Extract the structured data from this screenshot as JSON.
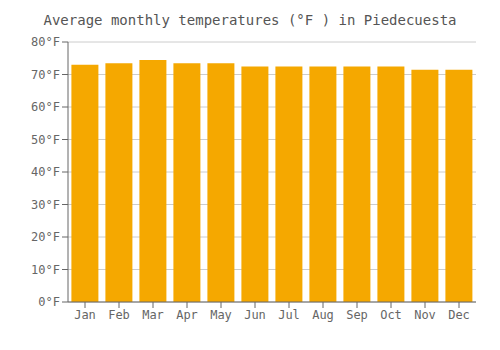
{
  "chart_data": {
    "type": "bar",
    "title": "Average monthly temperatures (°F ) in Piedecuesta",
    "categories": [
      "Jan",
      "Feb",
      "Mar",
      "Apr",
      "May",
      "Jun",
      "Jul",
      "Aug",
      "Sep",
      "Oct",
      "Nov",
      "Dec"
    ],
    "values": [
      73.0,
      73.5,
      74.5,
      73.5,
      73.5,
      72.5,
      72.5,
      72.5,
      72.5,
      72.5,
      71.5,
      71.5
    ],
    "color": "#F5A800",
    "ylim": [
      0,
      80
    ],
    "yticks": [
      {
        "value": 0,
        "label": "0°F"
      },
      {
        "value": 10,
        "label": "10°F"
      },
      {
        "value": 20,
        "label": "20°F"
      },
      {
        "value": 30,
        "label": "30°F"
      },
      {
        "value": 40,
        "label": "40°F"
      },
      {
        "value": 50,
        "label": "50°F"
      },
      {
        "value": 60,
        "label": "60°F"
      },
      {
        "value": 70,
        "label": "70°F"
      },
      {
        "value": 80,
        "label": "80°F"
      }
    ],
    "grid": true
  }
}
